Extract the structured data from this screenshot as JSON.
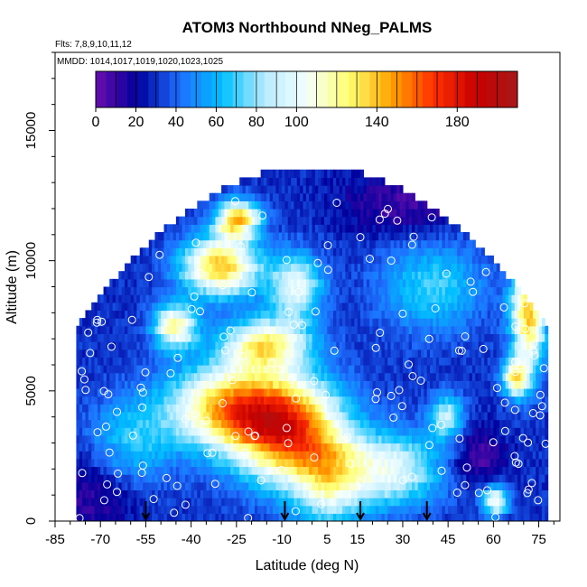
{
  "chart_data": {
    "type": "heatmap",
    "title": "ATOM3 Northbound NNeg_PALMS",
    "flights_note": "Flts: 7,8,9,10,11,12",
    "dates_note": "MMDD: 1014,1017,1019,1020,1023,1025",
    "xlabel": "Latitude (deg N)",
    "ylabel": "Altitude (m)",
    "xlim": [
      -85,
      82
    ],
    "ylim": [
      0,
      18000
    ],
    "x_ticks": [
      "-85",
      "-70",
      "-55",
      "-40",
      "-25",
      "-10",
      "5",
      "15",
      "30",
      "45",
      "60",
      "75"
    ],
    "x_tick_values": [
      -85,
      -70,
      -55,
      -40,
      -25,
      -10,
      5,
      15,
      30,
      45,
      60,
      75
    ],
    "y_ticks": [
      "0",
      "5000",
      "10000",
      "15000"
    ],
    "y_tick_values": [
      0,
      5000,
      10000,
      15000
    ],
    "colorbar": {
      "range": [
        0,
        210
      ],
      "tick_labels": [
        "0",
        "20",
        "40",
        "60",
        "80",
        "100",
        "140",
        "180"
      ],
      "tick_values": [
        0,
        20,
        40,
        60,
        80,
        100,
        140,
        180
      ],
      "color_stops": [
        "#6a0dad",
        "#00009c",
        "#1e6fff",
        "#00bfff",
        "#b8ecff",
        "#f5ffff",
        "#ffff70",
        "#ffa500",
        "#ff3000",
        "#c80000",
        "#a81818"
      ]
    },
    "profile_markers_lat": [
      -55,
      -9,
      16,
      38
    ],
    "field": {
      "lat_range": [
        -78,
        78
      ],
      "alt_max": 13500,
      "background_value": 30,
      "blobs": [
        {
          "lat": -8,
          "alt": 3500,
          "slat": 13,
          "salt": 1400,
          "amp": 130
        },
        {
          "lat": -28,
          "alt": 4400,
          "slat": 14,
          "salt": 1100,
          "amp": 100
        },
        {
          "lat": -15,
          "alt": 6800,
          "slat": 10,
          "salt": 700,
          "amp": 90
        },
        {
          "lat": -30,
          "alt": 9800,
          "slat": 9,
          "salt": 800,
          "amp": 110
        },
        {
          "lat": -25,
          "alt": 11600,
          "slat": 5,
          "salt": 500,
          "amp": 110
        },
        {
          "lat": -45,
          "alt": 7500,
          "slat": 5,
          "salt": 600,
          "amp": 90
        },
        {
          "lat": -5,
          "alt": 9000,
          "slat": 6,
          "salt": 900,
          "amp": 70
        },
        {
          "lat": 25,
          "alt": 2000,
          "slat": 12,
          "salt": 1000,
          "amp": 70
        },
        {
          "lat": 5,
          "alt": 1500,
          "slat": 8,
          "salt": 1200,
          "amp": 60
        },
        {
          "lat": 45,
          "alt": 4000,
          "slat": 4,
          "salt": 600,
          "amp": 60
        },
        {
          "lat": 72,
          "alt": 8000,
          "slat": 4,
          "salt": 1500,
          "amp": 110
        },
        {
          "lat": 68,
          "alt": 5500,
          "slat": 3,
          "salt": 500,
          "amp": 90
        },
        {
          "lat": 60,
          "alt": 800,
          "slat": 3,
          "salt": 400,
          "amp": 80
        },
        {
          "lat": 75,
          "alt": 9800,
          "slat": 3,
          "salt": 400,
          "amp": 100
        },
        {
          "lat": 40,
          "alt": 9000,
          "slat": 12,
          "salt": 1200,
          "amp": 40
        },
        {
          "lat": -60,
          "alt": 3000,
          "slat": 10,
          "salt": 1200,
          "amp": 35
        },
        {
          "lat": 55,
          "alt": 2500,
          "slat": 6,
          "salt": 800,
          "amp": -25
        },
        {
          "lat": 30,
          "alt": 12200,
          "slat": 15,
          "salt": 800,
          "amp": -22
        },
        {
          "lat": -72,
          "alt": 1000,
          "slat": 10,
          "salt": 1200,
          "amp": -20
        }
      ]
    }
  }
}
